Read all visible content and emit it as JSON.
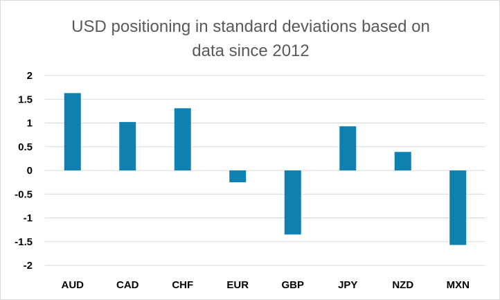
{
  "chart_data": {
    "type": "bar",
    "title_lines": [
      "USD positioning in standard deviations based on",
      "data since 2012"
    ],
    "categories": [
      "AUD",
      "CAD",
      "CHF",
      "EUR",
      "GBP",
      "JPY",
      "NZD",
      "MXN"
    ],
    "values": [
      1.63,
      1.02,
      1.31,
      -0.25,
      -1.35,
      0.93,
      0.39,
      -1.57
    ],
    "xlabel": "",
    "ylabel": "",
    "ylim": [
      -2,
      2
    ],
    "yticks": [
      "2",
      "1.5",
      "1",
      "0.5",
      "0",
      "-0.5",
      "-1",
      "-1.5",
      "-2"
    ],
    "ytick_values": [
      2,
      1.5,
      1,
      0.5,
      0,
      -0.5,
      -1,
      -1.5,
      -2
    ],
    "grid": true,
    "legend": "none",
    "bar_color": "#0e81b0",
    "grid_color": "#d9d9d9"
  }
}
